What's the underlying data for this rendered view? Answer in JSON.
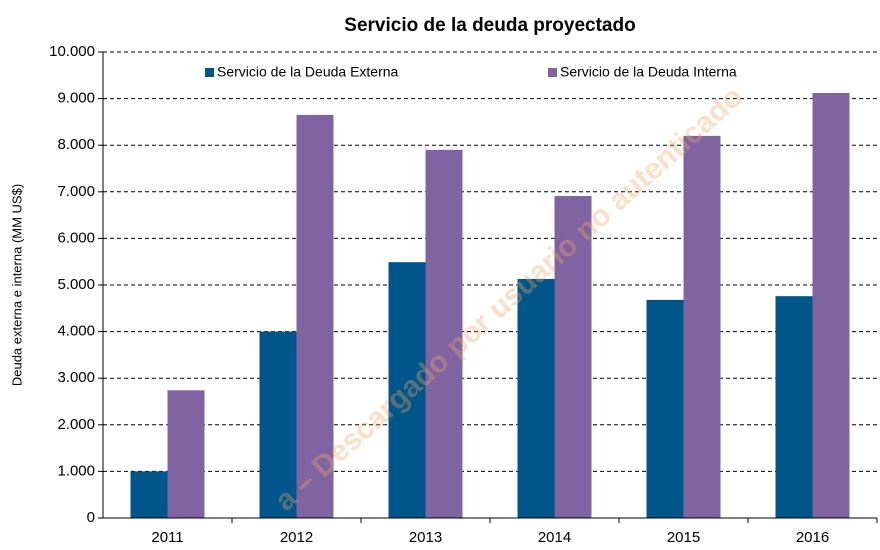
{
  "chart_data": {
    "type": "bar",
    "title": "Servicio de la deuda proyectado",
    "ylabel": "Deuda externa e interna  (MM US$)",
    "categories": [
      "2011",
      "2012",
      "2013",
      "2014",
      "2015",
      "2016"
    ],
    "series": [
      {
        "name": "Servicio de la Deuda Externa",
        "color": "#00558a",
        "values": [
          1000,
          4000,
          5490,
          5130,
          4680,
          4760
        ]
      },
      {
        "name": "Servicio de la Deuda Interna",
        "color": "#8064a2",
        "values": [
          2740,
          8650,
          7900,
          6910,
          8200,
          9120
        ]
      }
    ],
    "ylim": [
      0,
      10000
    ],
    "yticks": [
      0,
      {
        "value": 1000,
        "label": "1.000"
      },
      {
        "value": 2000,
        "label": "2.000"
      },
      {
        "value": 3000,
        "label": "3.000"
      },
      {
        "value": 4000,
        "label": "4.000"
      },
      {
        "value": 5000,
        "label": "5.000"
      },
      {
        "value": 6000,
        "label": "6.000"
      },
      {
        "value": 7000,
        "label": "7.000"
      },
      {
        "value": 8000,
        "label": "8.000"
      },
      {
        "value": 9000,
        "label": "9.000"
      },
      {
        "value": 10000,
        "label": "10.000"
      }
    ],
    "grid": true,
    "legend": "top",
    "watermark": "a – Descargado por usuario no autenticado"
  }
}
